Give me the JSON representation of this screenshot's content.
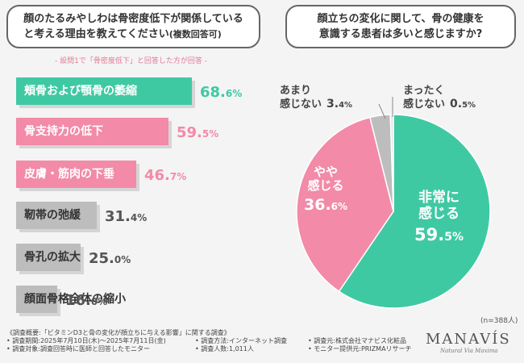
{
  "left_question": [
    "顔のたるみやしわは骨密度低下が関係している",
    "と考える理由を教えてください",
    "(複数回答可)"
  ],
  "right_question": [
    "顔立ちの変化に関して、骨の健康を",
    "意識する患者は多いと感じますか?"
  ],
  "subnote": "- 設問1で「骨密度低下」と回答した方が回答 -",
  "sample_size": "(n=388人)",
  "footer": {
    "lines": [
      [
        "《調査概要:「ビタミンD3と骨の変化が顔立ちに与える影響」に関する調査》"
      ],
      [
        "• 調査期間:2025年7月10日(木)〜2025年7月11日(金)",
        "• 調査方法:インターネット調査",
        "• 調査元:株式会社マナビス化粧品"
      ],
      [
        "• 調査対象:調査回答時に医師と回答したモニター",
        "• 調査人数:1,011人",
        "• モニター提供元:PRIZMAリサーチ"
      ]
    ]
  },
  "logo": {
    "name": "MANAVÍS",
    "tagline": "Natural Via Maxima"
  },
  "colors": {
    "teal": "#3fc9a3",
    "pink": "#f28aa8",
    "gray": "#bdbdbd",
    "light_gray": "#e6e6e6"
  },
  "chart_data": [
    {
      "type": "bar",
      "orientation": "horizontal",
      "categories": [
        "頬骨および顎骨の萎縮",
        "骨支持力の低下",
        "皮膚・筋肉の下垂",
        "靭帯の弛緩",
        "骨孔の拡大",
        "顔面骨格全体の縮小"
      ],
      "values": [
        68.6,
        59.5,
        46.7,
        31.4,
        25.0,
        16.0
      ],
      "value_labels": [
        [
          "68.",
          "6",
          "%"
        ],
        [
          "59.",
          "5",
          "%"
        ],
        [
          "46.",
          "7",
          "%"
        ],
        [
          "31.",
          "4",
          "%"
        ],
        [
          "25.",
          "0",
          "%"
        ],
        [
          "16.",
          "0",
          "%"
        ]
      ],
      "bar_colors": [
        "#3fc9a3",
        "#f28aa8",
        "#f28aa8",
        "#bdbdbd",
        "#bdbdbd",
        "#bdbdbd"
      ],
      "label_colors": [
        "#ffffff",
        "#ffffff",
        "#ffffff",
        "#333333",
        "#333333",
        "#333333"
      ],
      "pct_colors": [
        "#3fc9a3",
        "#f28aa8",
        "#f28aa8",
        "#555555",
        "#555555",
        "#555555"
      ]
    },
    {
      "type": "pie",
      "slices": [
        {
          "label": [
            "非常に",
            "感じる"
          ],
          "value": 59.5,
          "value_label": [
            "59.",
            "5",
            "%"
          ],
          "color": "#3fc9a3"
        },
        {
          "label": [
            "やや",
            "感じる"
          ],
          "value": 36.6,
          "value_label": [
            "36.",
            "6",
            "%"
          ],
          "color": "#f28aa8"
        },
        {
          "label": [
            "あまり",
            "感じない"
          ],
          "value": 3.4,
          "value_label": [
            "3.",
            "4",
            "%"
          ],
          "color": "#bdbdbd"
        },
        {
          "label": [
            "まったく",
            "感じない"
          ],
          "value": 0.5,
          "value_label": [
            "0.",
            "5",
            "%"
          ],
          "color": "#e6e6e6"
        }
      ]
    }
  ]
}
